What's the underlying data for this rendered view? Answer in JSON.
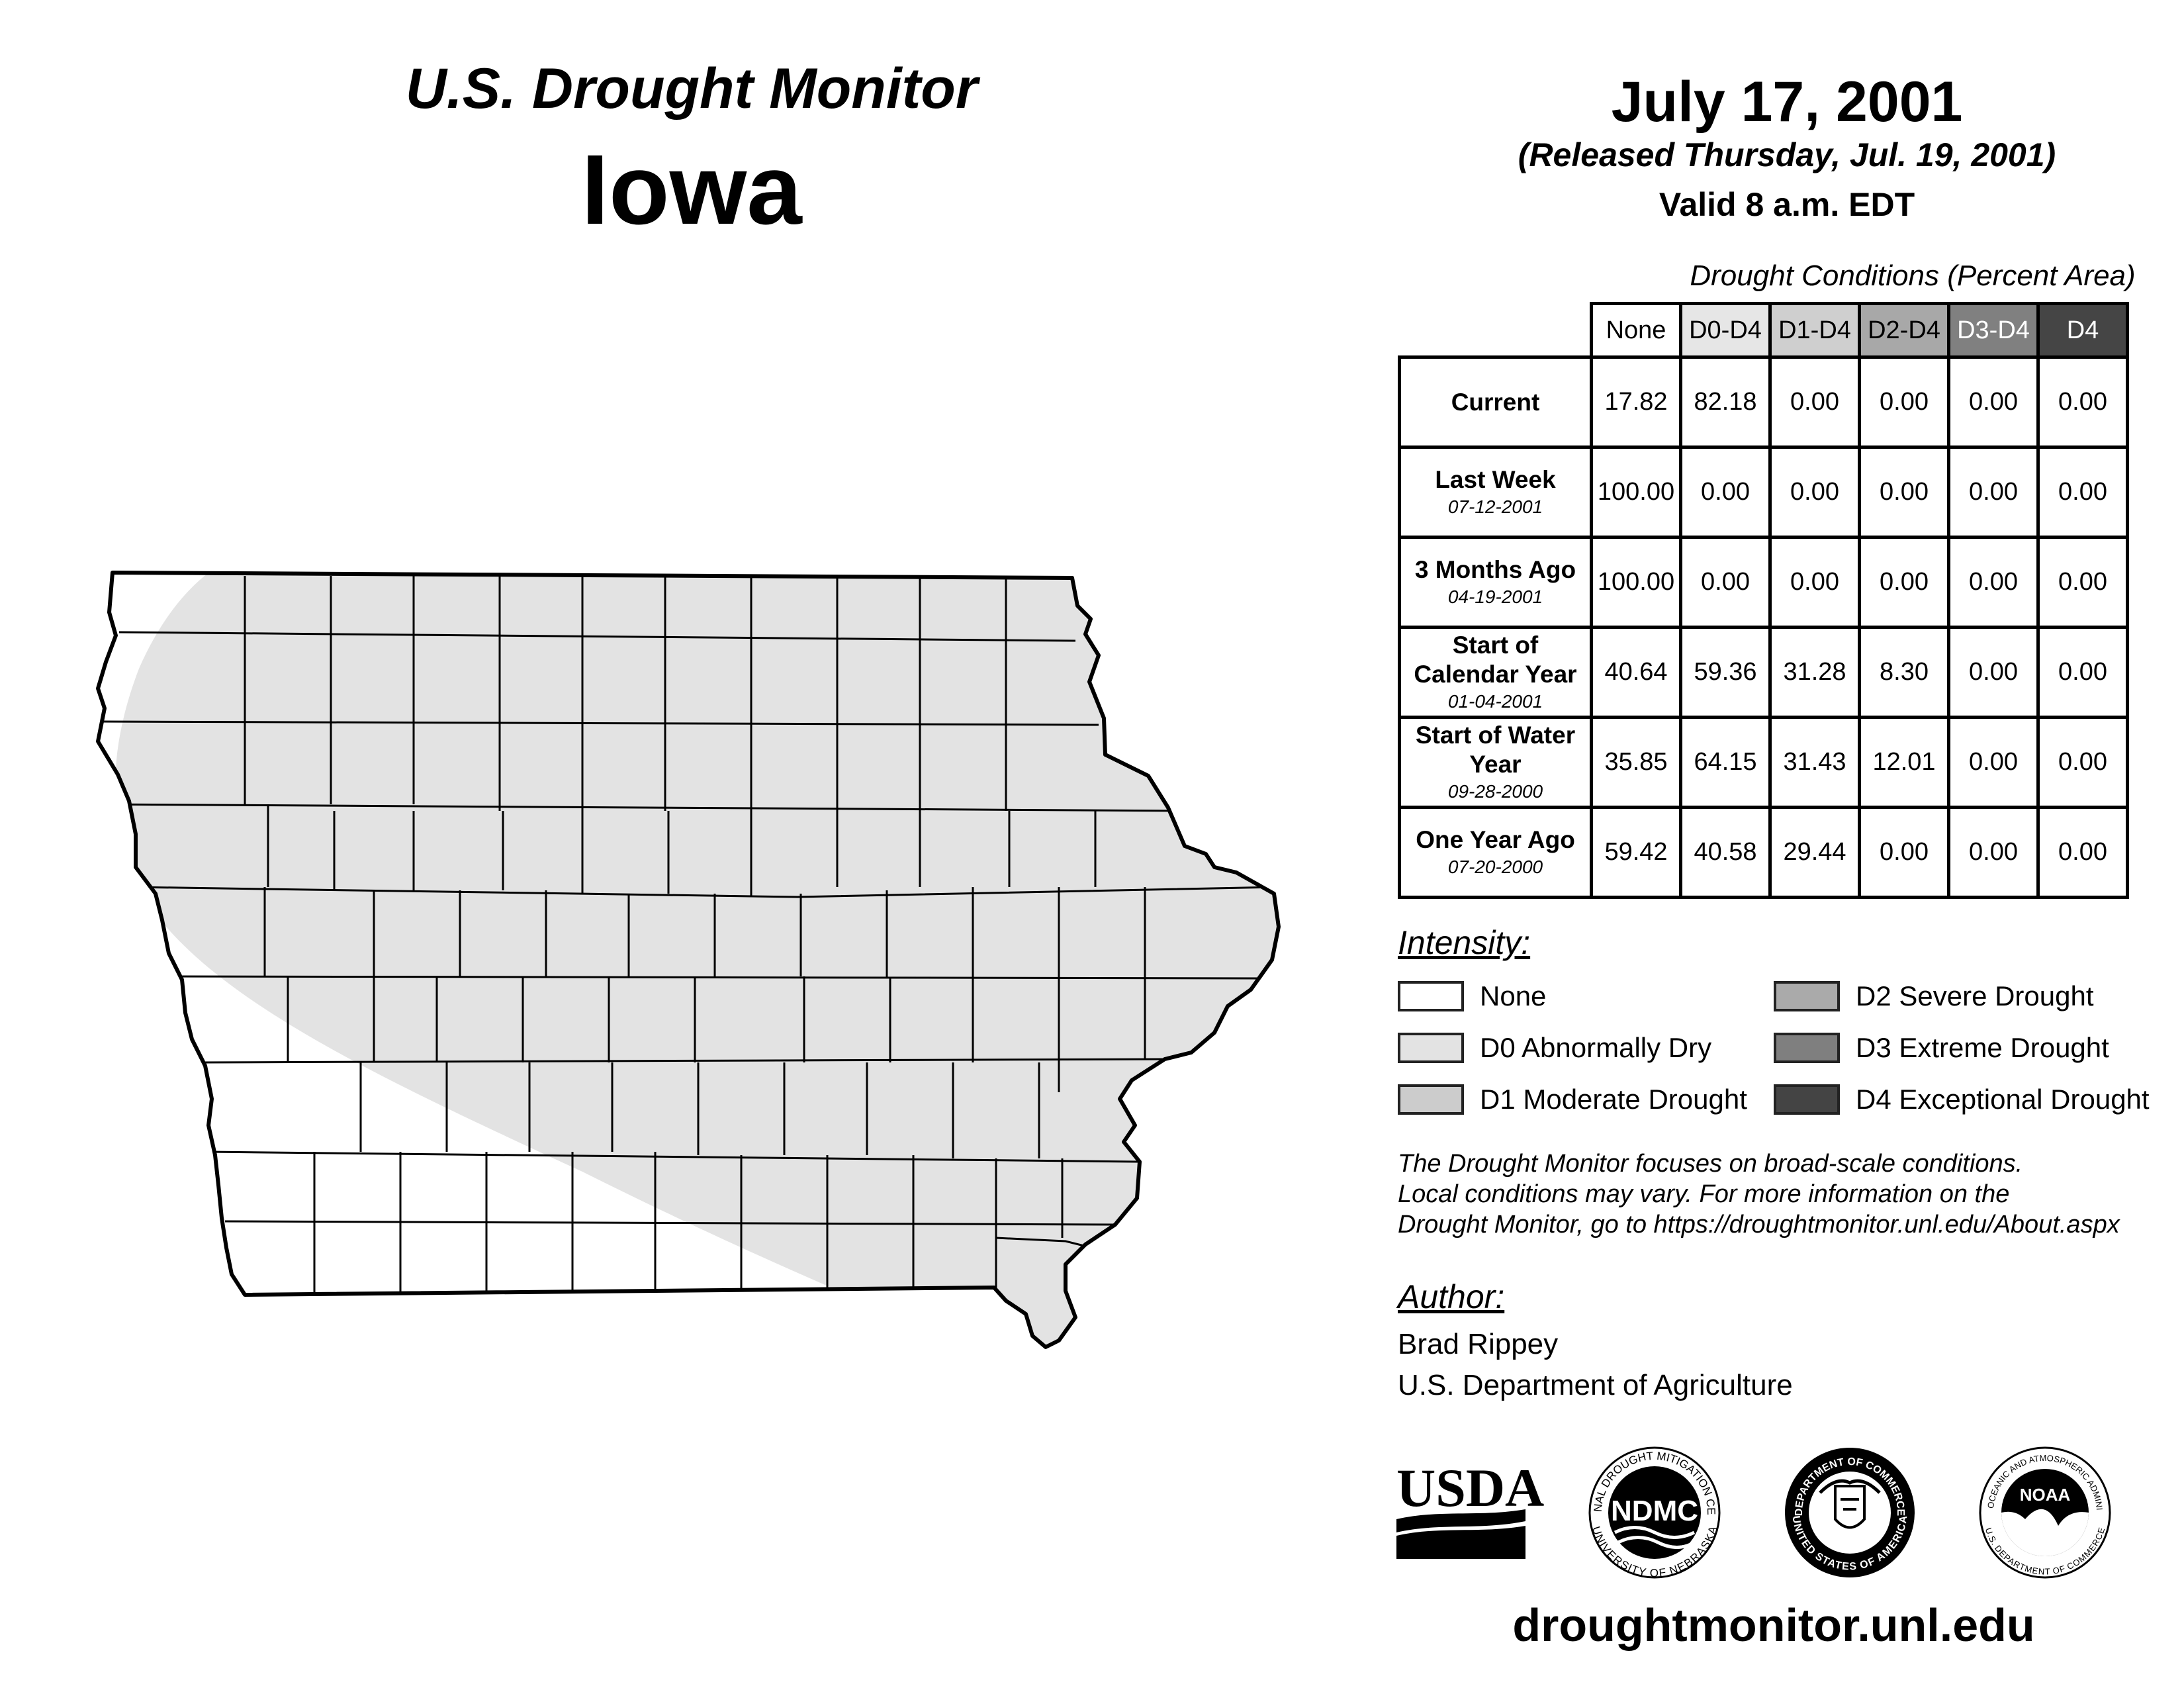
{
  "header": {
    "title_line1": "U.S. Drought Monitor",
    "title_line2": "Iowa",
    "date": "July 17, 2001",
    "released": "(Released Thursday, Jul. 19, 2001)",
    "valid": "Valid 8 a.m. EDT"
  },
  "table": {
    "caption": "Drought Conditions (Percent Area)",
    "columns": [
      "None",
      "D0-D4",
      "D1-D4",
      "D2-D4",
      "D3-D4",
      "D4"
    ],
    "column_colors": [
      "#ffffff",
      "#e6e6e6",
      "#cfcfcf",
      "#a8a8a8",
      "#808080",
      "#454545"
    ],
    "rows": [
      {
        "label": "Current",
        "date": "",
        "values": [
          "17.82",
          "82.18",
          "0.00",
          "0.00",
          "0.00",
          "0.00"
        ]
      },
      {
        "label": "Last Week",
        "date": "07-12-2001",
        "values": [
          "100.00",
          "0.00",
          "0.00",
          "0.00",
          "0.00",
          "0.00"
        ]
      },
      {
        "label": "3 Months Ago",
        "date": "04-19-2001",
        "values": [
          "100.00",
          "0.00",
          "0.00",
          "0.00",
          "0.00",
          "0.00"
        ]
      },
      {
        "label": "Start of Calendar Year",
        "date": "01-04-2001",
        "values": [
          "40.64",
          "59.36",
          "31.28",
          "8.30",
          "0.00",
          "0.00"
        ]
      },
      {
        "label": "Start of Water Year",
        "date": "09-28-2000",
        "values": [
          "35.85",
          "64.15",
          "31.43",
          "12.01",
          "0.00",
          "0.00"
        ]
      },
      {
        "label": "One Year Ago",
        "date": "07-20-2000",
        "values": [
          "59.42",
          "40.58",
          "29.44",
          "0.00",
          "0.00",
          "0.00"
        ]
      }
    ]
  },
  "legend": {
    "title": "Intensity:",
    "items": [
      {
        "label": "None",
        "color": "#ffffff"
      },
      {
        "label": "D0 Abnormally Dry",
        "color": "#e3e3e3"
      },
      {
        "label": "D1 Moderate Drought",
        "color": "#cccccc"
      },
      {
        "label": "D2 Severe Drought",
        "color": "#aaaaaa"
      },
      {
        "label": "D3 Extreme Drought",
        "color": "#7f7f7f"
      },
      {
        "label": "D4 Exceptional Drought",
        "color": "#444444"
      }
    ]
  },
  "note": {
    "line1": "The Drought Monitor focuses on broad-scale conditions.",
    "line2": "Local conditions may vary. For more information on the",
    "line3": "Drought Monitor, go to https://droughtmonitor.unl.edu/About.aspx"
  },
  "author": {
    "title": "Author:",
    "name": "Brad Rippey",
    "org": "U.S. Department of Agriculture"
  },
  "logos": {
    "usda": "USDA",
    "ndmc": "NDMC",
    "ndmc_ring_top": "NATIONAL DROUGHT MITIGATION CENTER",
    "ndmc_ring_bottom": "UNIVERSITY OF NEBRASKA",
    "doc_ring_top": "DEPARTMENT OF COMMERCE",
    "doc_ring_bottom": "UNITED STATES OF AMERICA",
    "noaa": "NOAA",
    "noaa_ring_top": "NATIONAL OCEANIC AND ATMOSPHERIC ADMINISTRATION",
    "noaa_ring_bottom": "U.S. DEPARTMENT OF COMMERCE"
  },
  "website": "droughtmonitor.unl.edu",
  "map": {
    "region": "Iowa",
    "d0_color": "#e3e3e3",
    "border_color": "#000000"
  }
}
